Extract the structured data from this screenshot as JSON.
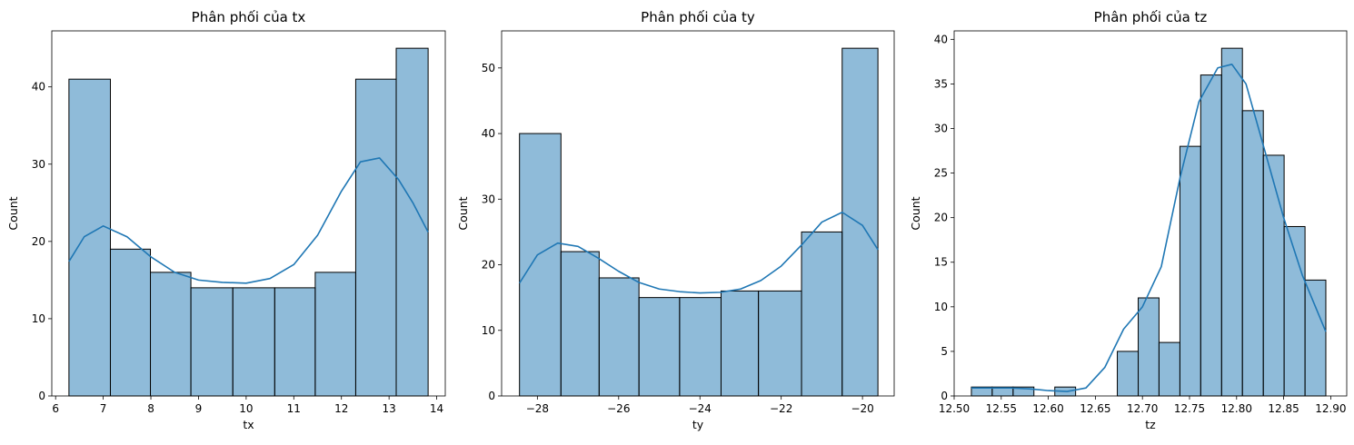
{
  "chart_data": [
    {
      "type": "bar",
      "title": "Phân phối của tx",
      "xlabel": "tx",
      "ylabel": "Count",
      "xlim": [
        5.92,
        14.18
      ],
      "ylim": [
        0,
        47.25
      ],
      "x_ticks": [
        6,
        7,
        8,
        9,
        10,
        11,
        12,
        13,
        14
      ],
      "y_ticks": [
        0,
        10,
        20,
        30,
        40
      ],
      "bin_edges": [
        6.28,
        7.15,
        7.99,
        8.84,
        9.72,
        10.6,
        11.45,
        12.3,
        13.15,
        13.82
      ],
      "values": [
        41,
        19,
        16,
        14,
        14,
        14,
        16,
        41,
        45
      ],
      "kde": {
        "x": [
          6.28,
          6.6,
          7.0,
          7.5,
          8.0,
          8.5,
          9.0,
          9.5,
          10.0,
          10.5,
          11.0,
          11.5,
          12.0,
          12.4,
          12.8,
          13.2,
          13.5,
          13.82
        ],
        "y": [
          17.4,
          20.6,
          22.0,
          20.6,
          18.0,
          16.0,
          15.0,
          14.7,
          14.6,
          15.2,
          17.0,
          20.8,
          26.5,
          30.3,
          30.8,
          28.0,
          25.0,
          21.2
        ]
      },
      "grid": false
    },
    {
      "type": "bar",
      "title": "Phân phối của ty",
      "xlabel": "ty",
      "ylabel": "Count",
      "xlim": [
        -28.88,
        -19.22
      ],
      "ylim": [
        0,
        55.65
      ],
      "x_ticks": [
        -28,
        -26,
        -24,
        -22,
        -20
      ],
      "y_ticks": [
        0,
        10,
        20,
        30,
        40,
        50
      ],
      "bin_edges": [
        -28.44,
        -27.42,
        -26.48,
        -25.5,
        -24.5,
        -23.48,
        -22.56,
        -21.5,
        -20.5,
        -19.62
      ],
      "values": [
        40,
        22,
        18,
        15,
        15,
        16,
        16,
        25,
        53
      ],
      "kde": {
        "x": [
          -28.44,
          -28.0,
          -27.5,
          -27.0,
          -26.5,
          -26.0,
          -25.5,
          -25.0,
          -24.5,
          -24.0,
          -23.5,
          -23.0,
          -22.5,
          -22.0,
          -21.5,
          -21.0,
          -20.5,
          -20.0,
          -19.62
        ],
        "y": [
          17.2,
          21.5,
          23.3,
          22.8,
          21.0,
          19.0,
          17.3,
          16.3,
          15.9,
          15.7,
          15.8,
          16.3,
          17.6,
          19.8,
          23.0,
          26.5,
          28.0,
          26.0,
          22.3
        ]
      },
      "grid": false
    },
    {
      "type": "bar",
      "title": "Phân phối của tz",
      "xlabel": "tz",
      "ylabel": "Count",
      "xlim": [
        12.5,
        12.917
      ],
      "ylim": [
        0,
        40.95
      ],
      "x_ticks": [
        "12.50",
        "12.55",
        "12.60",
        "12.65",
        "12.70",
        "12.75",
        "12.80",
        "12.85",
        "12.90"
      ],
      "y_ticks": [
        0,
        5,
        10,
        15,
        20,
        25,
        30,
        35,
        40
      ],
      "bin_edges": [
        12.5183,
        12.5404,
        12.5626,
        12.5847,
        12.6069,
        12.629,
        12.6512,
        12.6733,
        12.6955,
        12.7176,
        12.7398,
        12.7619,
        12.7841,
        12.8062,
        12.8284,
        12.8505,
        12.8727,
        12.8948
      ],
      "values": [
        1,
        1,
        1,
        0,
        1,
        0,
        0,
        5,
        11,
        6,
        28,
        36,
        39,
        32,
        27,
        19,
        13
      ],
      "kde": {
        "x": [
          12.5183,
          12.54,
          12.56,
          12.58,
          12.6,
          12.62,
          12.64,
          12.66,
          12.68,
          12.7,
          12.72,
          12.74,
          12.76,
          12.78,
          12.795,
          12.81,
          12.83,
          12.85,
          12.87,
          12.8948
        ],
        "y": [
          0.9,
          0.9,
          0.9,
          0.8,
          0.6,
          0.5,
          0.9,
          3.2,
          7.5,
          10.0,
          14.5,
          24.5,
          33.0,
          36.8,
          37.2,
          35.0,
          27.5,
          20.0,
          13.5,
          7.2
        ]
      },
      "grid": false
    }
  ]
}
